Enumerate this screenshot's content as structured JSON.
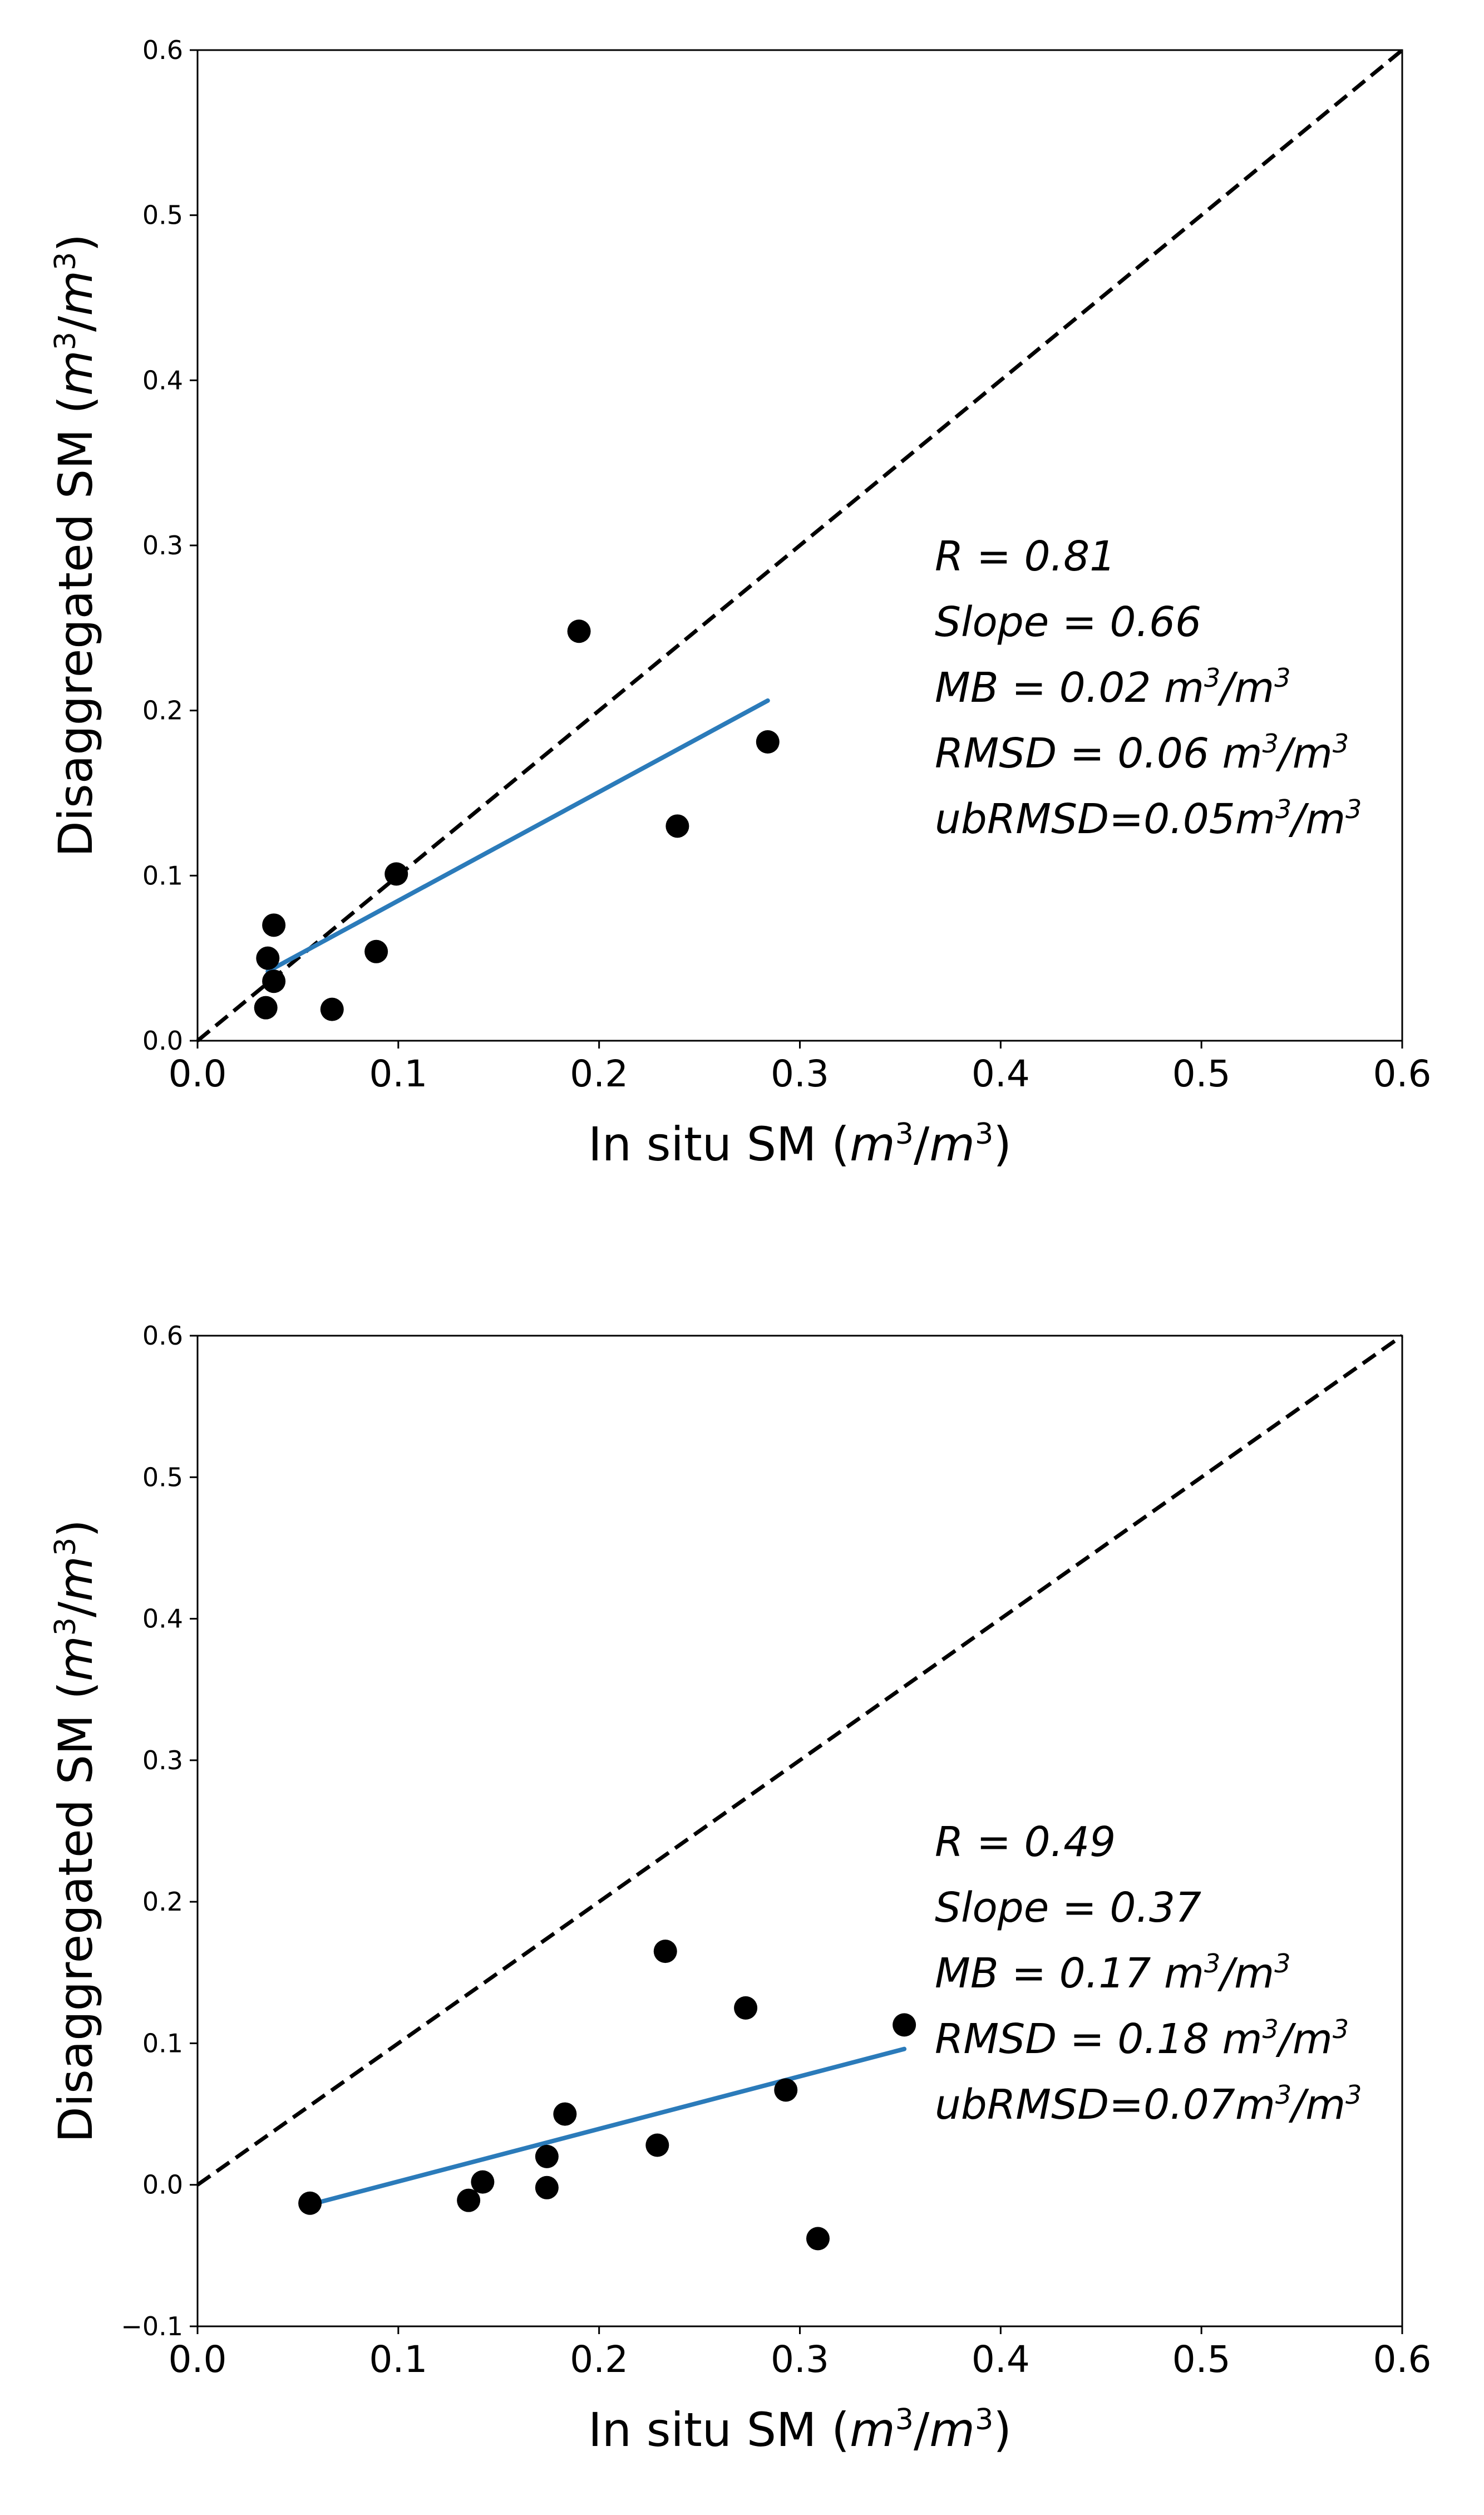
{
  "chart_data": [
    {
      "type": "scatter",
      "title": "",
      "xlabel": "In situ SM (m³/m³)",
      "ylabel": "Disaggregated SM (m³/m³)",
      "xlim": [
        0.0,
        0.6
      ],
      "ylim": [
        0.0,
        0.6
      ],
      "xticks": [
        "0.0",
        "0.1",
        "0.2",
        "0.3",
        "0.4",
        "0.5",
        "0.6"
      ],
      "yticks": [
        "0.0",
        "0.1",
        "0.2",
        "0.3",
        "0.4",
        "0.5",
        "0.6"
      ],
      "grid": false,
      "series": [
        {
          "name": "observations",
          "color": "#000000",
          "x": [
            0.035,
            0.038,
            0.034,
            0.038,
            0.067,
            0.089,
            0.099,
            0.19,
            0.239,
            0.284
          ],
          "y": [
            0.05,
            0.07,
            0.02,
            0.036,
            0.019,
            0.054,
            0.101,
            0.248,
            0.13,
            0.181
          ]
        }
      ],
      "reference_line": {
        "name": "1:1 line",
        "color": "#000000",
        "style": "dashed",
        "x": [
          0.0,
          0.6
        ],
        "y": [
          0.0,
          0.6
        ]
      },
      "fit_line": {
        "name": "linear fit",
        "color": "#2b7bba",
        "x": [
          0.035,
          0.284
        ],
        "y": [
          0.042,
          0.206
        ]
      },
      "annotations": [
        "R = 0.81",
        "Slope = 0.66",
        "MB = 0.02 m³/m³",
        "RMSD = 0.06 m³/m³",
        "ubRMSD=0.05m³/m³"
      ]
    },
    {
      "type": "scatter",
      "title": "",
      "xlabel": "In situ SM (m³/m³)",
      "ylabel": "Disaggregated SM (m³/m³)",
      "xlim": [
        0.0,
        0.6
      ],
      "ylim": [
        -0.1,
        0.6
      ],
      "xticks": [
        "0.0",
        "0.1",
        "0.2",
        "0.3",
        "0.4",
        "0.5",
        "0.6"
      ],
      "yticks": [
        "−0.1",
        "0.0",
        "0.1",
        "0.2",
        "0.3",
        "0.4",
        "0.5",
        "0.6"
      ],
      "grid": false,
      "series": [
        {
          "name": "observations",
          "color": "#000000",
          "x": [
            0.056,
            0.135,
            0.142,
            0.174,
            0.174,
            0.183,
            0.229,
            0.233,
            0.273,
            0.293,
            0.309,
            0.352
          ],
          "y": [
            -0.013,
            -0.011,
            0.002,
            -0.002,
            0.02,
            0.05,
            0.028,
            0.165,
            0.125,
            0.067,
            -0.038,
            0.113
          ]
        }
      ],
      "reference_line": {
        "name": "1:1 line",
        "color": "#000000",
        "style": "dashed",
        "x": [
          0.0,
          0.6
        ],
        "y": [
          0.0,
          0.6
        ]
      },
      "fit_line": {
        "name": "linear fit",
        "color": "#2b7bba",
        "x": [
          0.056,
          0.352
        ],
        "y": [
          -0.014,
          0.096
        ]
      },
      "annotations": [
        "R = 0.49",
        "Slope = 0.37",
        "MB = 0.17 m³/m³",
        "RMSD = 0.18 m³/m³",
        "ubRMSD=0.07m³/m³"
      ]
    }
  ]
}
